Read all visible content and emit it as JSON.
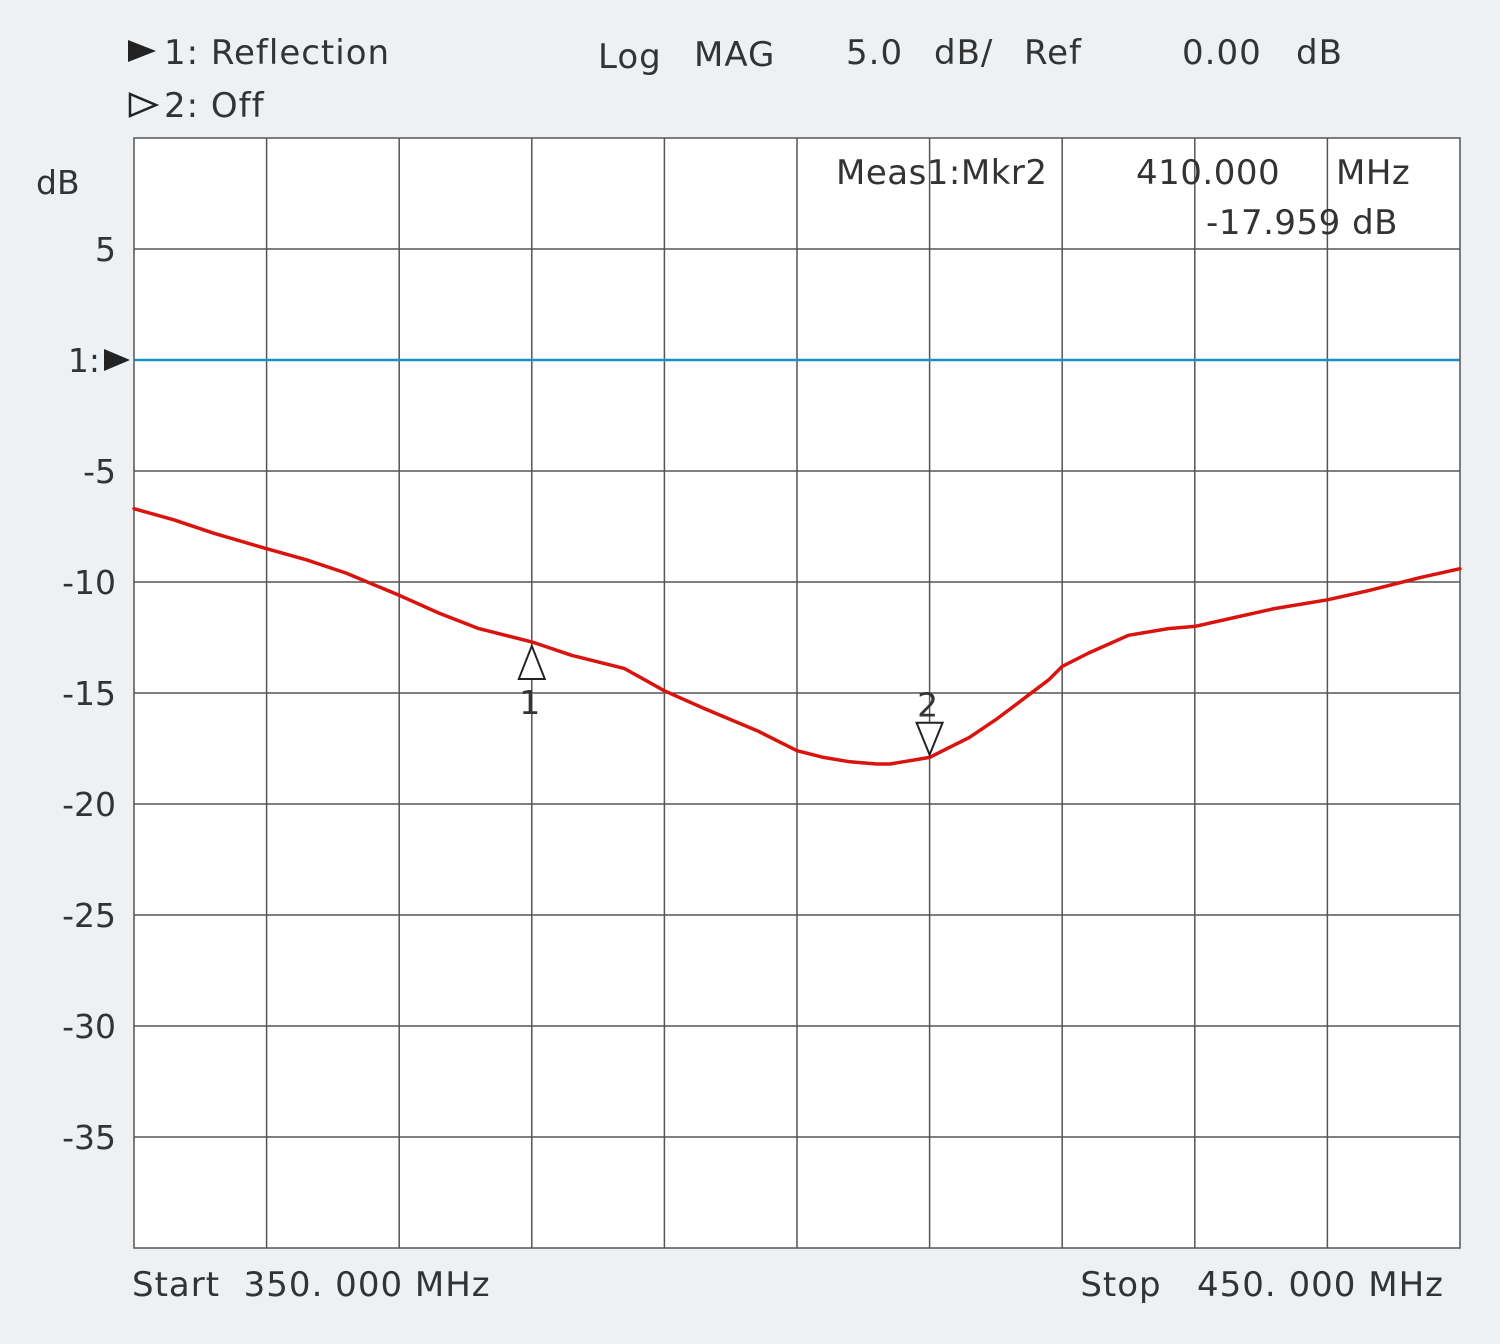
{
  "header": {
    "trace1_label": "1: Reflection",
    "trace2_label": "2: Off",
    "format": "Log",
    "format2": "MAG",
    "scale": "5.0",
    "scale_unit": "dB/",
    "ref_label": "Ref",
    "ref_value": "0.00",
    "ref_unit": "dB"
  },
  "marker_readout": {
    "label": "Meas1:Mkr2",
    "freq": "410.000",
    "freq_unit": "MHz",
    "value": "-17.959 dB"
  },
  "footer": {
    "start": "Start  350. 000 MHz",
    "stop": "Stop   450. 000 MHz"
  },
  "ref_marker_label": "1:",
  "colors": {
    "background": "#eef1f4",
    "plot_bg": "#ffffff",
    "grid": "#555555",
    "trace": "#d9140f",
    "reference_line": "#1c8fc8"
  },
  "chart_data": {
    "type": "line",
    "xlim": [
      350,
      450
    ],
    "ylim": [
      -40,
      10
    ],
    "x_divisions": 10,
    "ylabel": "dB",
    "yticks": [
      5,
      -5,
      -10,
      -15,
      -20,
      -25,
      -30,
      -35
    ],
    "ytick_labels": [
      "5",
      "-5",
      "-10",
      "-15",
      "-20",
      "-25",
      "-30",
      "-35"
    ],
    "reference_level": 0,
    "grid": true,
    "series": [
      {
        "x": [
          350,
          353,
          356,
          360,
          363,
          366,
          370,
          373,
          376,
          380,
          383,
          387,
          390,
          393,
          397,
          400,
          402,
          404,
          406,
          407,
          408,
          409,
          410,
          411,
          413,
          415,
          417,
          419,
          420,
          422,
          425,
          428,
          430,
          433,
          436,
          440,
          443,
          447,
          450
        ],
        "y": [
          -6.7,
          -7.2,
          -7.8,
          -8.5,
          -9.0,
          -9.6,
          -10.6,
          -11.4,
          -12.1,
          -12.7,
          -13.3,
          -13.9,
          -14.9,
          -15.7,
          -16.7,
          -17.6,
          -17.9,
          -18.1,
          -18.2,
          -18.2,
          -18.1,
          -18.0,
          -17.9,
          -17.6,
          -17.0,
          -16.2,
          -15.3,
          -14.4,
          -13.8,
          -13.2,
          -12.4,
          -12.1,
          -12.0,
          -11.6,
          -11.2,
          -10.8,
          -10.4,
          -9.8,
          -9.4
        ]
      }
    ],
    "markers": [
      {
        "label": "1",
        "x": 380,
        "y": -12.7,
        "direction": "up"
      },
      {
        "label": "2",
        "x": 410,
        "y": -17.959,
        "direction": "down"
      }
    ]
  }
}
